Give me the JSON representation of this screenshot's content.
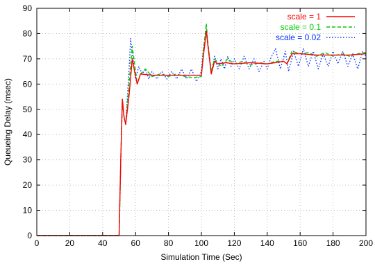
{
  "chart_data": {
    "type": "line",
    "title": "",
    "xlabel": "Simulation Time (Sec)",
    "ylabel": "Queueing Delay (msec)",
    "xlim": [
      0,
      200
    ],
    "ylim": [
      0,
      90
    ],
    "xticks": [
      0,
      20,
      40,
      60,
      80,
      100,
      120,
      140,
      160,
      180,
      200
    ],
    "yticks": [
      0,
      10,
      20,
      30,
      40,
      50,
      60,
      70,
      80,
      90
    ],
    "grid": true,
    "legend_position": "top-right",
    "series": [
      {
        "name": "scale = 1",
        "color": "#ff0000",
        "dash": "solid",
        "points": [
          [
            0,
            0
          ],
          [
            50,
            0
          ],
          [
            51,
            30
          ],
          [
            52,
            54
          ],
          [
            53,
            47
          ],
          [
            54,
            44
          ],
          [
            56,
            55
          ],
          [
            58,
            70
          ],
          [
            60,
            63
          ],
          [
            61,
            60
          ],
          [
            63,
            64
          ],
          [
            70,
            63.5
          ],
          [
            80,
            63.5
          ],
          [
            90,
            63.5
          ],
          [
            100,
            63.5
          ],
          [
            101,
            70
          ],
          [
            103,
            81
          ],
          [
            104,
            75
          ],
          [
            106,
            64
          ],
          [
            108,
            69
          ],
          [
            110,
            68
          ],
          [
            115,
            68.5
          ],
          [
            120,
            68
          ],
          [
            130,
            68.5
          ],
          [
            140,
            68
          ],
          [
            150,
            69
          ],
          [
            152,
            68
          ],
          [
            155,
            72
          ],
          [
            160,
            72
          ],
          [
            170,
            71.5
          ],
          [
            180,
            71.5
          ],
          [
            190,
            71.5
          ],
          [
            200,
            72
          ]
        ]
      },
      {
        "name": "scale = 0.1",
        "color": "#00cc00",
        "dash": "dashed",
        "points": [
          [
            0,
            0
          ],
          [
            50,
            0
          ],
          [
            51,
            30
          ],
          [
            52,
            53
          ],
          [
            53,
            47
          ],
          [
            54,
            44
          ],
          [
            56,
            60
          ],
          [
            58,
            75
          ],
          [
            60,
            65
          ],
          [
            61,
            60
          ],
          [
            63,
            64
          ],
          [
            66,
            66
          ],
          [
            70,
            63
          ],
          [
            75,
            64
          ],
          [
            80,
            63
          ],
          [
            85,
            64
          ],
          [
            90,
            63
          ],
          [
            95,
            62.5
          ],
          [
            100,
            63
          ],
          [
            101,
            72
          ],
          [
            103,
            84
          ],
          [
            104,
            76
          ],
          [
            106,
            65
          ],
          [
            108,
            70
          ],
          [
            112,
            67
          ],
          [
            116,
            70
          ],
          [
            120,
            68
          ],
          [
            125,
            69
          ],
          [
            130,
            67.5
          ],
          [
            135,
            68.5
          ],
          [
            140,
            68
          ],
          [
            145,
            69
          ],
          [
            150,
            69
          ],
          [
            152,
            68
          ],
          [
            155,
            73
          ],
          [
            160,
            72
          ],
          [
            165,
            72.5
          ],
          [
            170,
            71
          ],
          [
            175,
            72.5
          ],
          [
            180,
            71
          ],
          [
            185,
            72
          ],
          [
            190,
            71
          ],
          [
            195,
            72
          ],
          [
            200,
            72.5
          ]
        ]
      },
      {
        "name": "scale = 0.02",
        "color": "#0033ff",
        "dash": "dotted",
        "points": [
          [
            0,
            0
          ],
          [
            50,
            0
          ],
          [
            51,
            30
          ],
          [
            52,
            54
          ],
          [
            53,
            47
          ],
          [
            54,
            44
          ],
          [
            56,
            65
          ],
          [
            57,
            78
          ],
          [
            58,
            72
          ],
          [
            60,
            62
          ],
          [
            62,
            67
          ],
          [
            64,
            64
          ],
          [
            66,
            66
          ],
          [
            68,
            62
          ],
          [
            70,
            65
          ],
          [
            73,
            62
          ],
          [
            76,
            65
          ],
          [
            79,
            62
          ],
          [
            82,
            65
          ],
          [
            85,
            62
          ],
          [
            88,
            66
          ],
          [
            91,
            62
          ],
          [
            94,
            66
          ],
          [
            97,
            61
          ],
          [
            100,
            65
          ],
          [
            101,
            73
          ],
          [
            103,
            82
          ],
          [
            104,
            75
          ],
          [
            106,
            64
          ],
          [
            108,
            71
          ],
          [
            110,
            66
          ],
          [
            112,
            70
          ],
          [
            114,
            66
          ],
          [
            116,
            71
          ],
          [
            118,
            67
          ],
          [
            120,
            70
          ],
          [
            123,
            66
          ],
          [
            126,
            71
          ],
          [
            129,
            66
          ],
          [
            132,
            70
          ],
          [
            135,
            65
          ],
          [
            138,
            69
          ],
          [
            140,
            66
          ],
          [
            142,
            70
          ],
          [
            145,
            74
          ],
          [
            148,
            66
          ],
          [
            151,
            73
          ],
          [
            153,
            65
          ],
          [
            156,
            73
          ],
          [
            159,
            67
          ],
          [
            162,
            74
          ],
          [
            165,
            67
          ],
          [
            168,
            73
          ],
          [
            171,
            66
          ],
          [
            174,
            72
          ],
          [
            177,
            67
          ],
          [
            180,
            73
          ],
          [
            183,
            68
          ],
          [
            186,
            73
          ],
          [
            189,
            67
          ],
          [
            192,
            72
          ],
          [
            195,
            66
          ],
          [
            198,
            73
          ],
          [
            200,
            71
          ]
        ]
      }
    ]
  }
}
